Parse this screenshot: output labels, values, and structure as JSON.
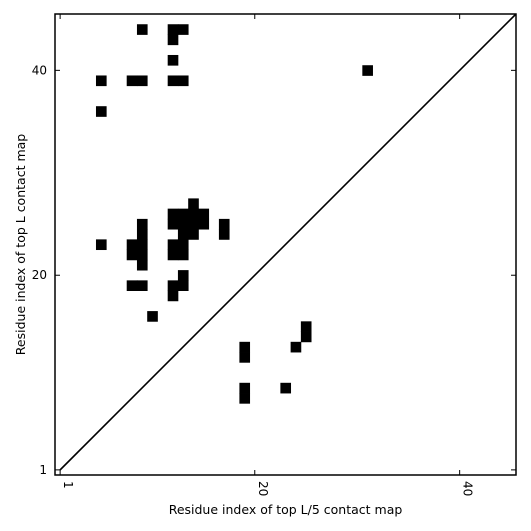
{
  "chart_data": {
    "type": "heatmap",
    "xlabel": "Residue index of top L/5 contact map",
    "ylabel": "Residue index of top L contact map",
    "xlim": [
      0.5,
      45.5
    ],
    "ylim": [
      0.5,
      45.5
    ],
    "x_ticks": [
      1,
      20,
      40
    ],
    "y_ticks": [
      1,
      20,
      40
    ],
    "x_tick_rotation": 90,
    "diagonal": true,
    "grid": false,
    "cell_color": "#000000",
    "background_color": "#ffffff",
    "cells_top_L": [
      [
        9,
        44
      ],
      [
        12,
        44
      ],
      [
        13,
        44
      ],
      [
        12,
        43
      ],
      [
        12,
        41
      ],
      [
        5,
        39
      ],
      [
        8,
        39
      ],
      [
        9,
        39
      ],
      [
        12,
        39
      ],
      [
        13,
        39
      ],
      [
        5,
        36
      ],
      [
        14,
        27
      ],
      [
        12,
        26
      ],
      [
        13,
        26
      ],
      [
        14,
        26
      ],
      [
        15,
        26
      ],
      [
        9,
        25
      ],
      [
        12,
        25
      ],
      [
        13,
        25
      ],
      [
        14,
        25
      ],
      [
        15,
        25
      ],
      [
        17,
        25
      ],
      [
        9,
        24
      ],
      [
        13,
        24
      ],
      [
        14,
        24
      ],
      [
        17,
        24
      ],
      [
        5,
        23
      ],
      [
        8,
        23
      ],
      [
        9,
        23
      ],
      [
        12,
        23
      ],
      [
        13,
        23
      ],
      [
        8,
        22
      ],
      [
        9,
        22
      ],
      [
        12,
        22
      ],
      [
        13,
        22
      ],
      [
        9,
        21
      ],
      [
        13,
        20
      ],
      [
        8,
        19
      ],
      [
        9,
        19
      ],
      [
        12,
        19
      ],
      [
        13,
        19
      ],
      [
        12,
        18
      ],
      [
        10,
        16
      ]
    ],
    "cells_top_L5": [
      [
        31,
        40
      ],
      [
        25,
        15
      ],
      [
        25,
        14
      ],
      [
        19,
        13
      ],
      [
        24,
        13
      ],
      [
        19,
        12
      ],
      [
        19,
        9
      ],
      [
        23,
        9
      ],
      [
        19,
        8
      ]
    ]
  }
}
